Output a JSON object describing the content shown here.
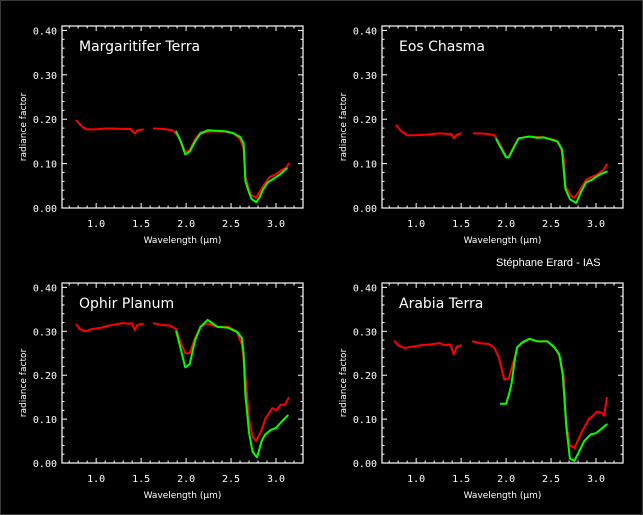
{
  "credit": "Stéphane Erard - IAS",
  "colors": {
    "background": "#000000",
    "axis": "#ffffff",
    "series_red": "#ff0000",
    "series_green": "#00ff00"
  },
  "chart_data": [
    {
      "type": "line",
      "title": "Margaritifer Terra",
      "xlabel": "Wavelength (µm)",
      "ylabel": "radiance factor",
      "xlim": [
        0.62,
        3.3
      ],
      "ylim": [
        0.0,
        0.41
      ],
      "xticks": [
        "1.0",
        "1.5",
        "2.0",
        "2.5",
        "3.0"
      ],
      "xtick_values": [
        1.0,
        1.5,
        2.0,
        2.5,
        3.0
      ],
      "yticks": [
        "0.00",
        "0.10",
        "0.20",
        "0.30",
        "0.40"
      ],
      "ytick_values": [
        0.0,
        0.1,
        0.2,
        0.3,
        0.4
      ],
      "series": [
        {
          "name": "red-1",
          "color": "red",
          "points": [
            [
              0.78,
              0.197
            ],
            [
              0.85,
              0.182
            ],
            [
              0.9,
              0.177
            ],
            [
              1.0,
              0.177
            ],
            [
              1.1,
              0.179
            ],
            [
              1.2,
              0.179
            ],
            [
              1.3,
              0.178
            ],
            [
              1.38,
              0.178
            ],
            [
              1.43,
              0.168
            ],
            [
              1.46,
              0.175
            ],
            [
              1.52,
              0.177
            ]
          ]
        },
        {
          "name": "red-2",
          "color": "red",
          "points": [
            [
              1.64,
              0.179
            ],
            [
              1.75,
              0.178
            ],
            [
              1.85,
              0.175
            ],
            [
              1.92,
              0.16
            ],
            [
              1.99,
              0.127
            ],
            [
              2.04,
              0.13
            ],
            [
              2.1,
              0.155
            ],
            [
              2.16,
              0.17
            ],
            [
              2.3,
              0.173
            ],
            [
              2.43,
              0.172
            ],
            [
              2.53,
              0.168
            ],
            [
              2.6,
              0.155
            ],
            [
              2.64,
              0.135
            ],
            [
              2.66,
              0.07
            ],
            [
              2.72,
              0.03
            ],
            [
              2.78,
              0.023
            ],
            [
              2.86,
              0.05
            ],
            [
              2.93,
              0.07
            ],
            [
              2.99,
              0.075
            ],
            [
              3.06,
              0.085
            ],
            [
              3.12,
              0.092
            ],
            [
              3.14,
              0.1
            ]
          ]
        },
        {
          "name": "green",
          "color": "green",
          "points": [
            [
              1.89,
              0.172
            ],
            [
              1.94,
              0.15
            ],
            [
              1.99,
              0.121
            ],
            [
              2.04,
              0.127
            ],
            [
              2.1,
              0.15
            ],
            [
              2.16,
              0.168
            ],
            [
              2.24,
              0.175
            ],
            [
              2.33,
              0.174
            ],
            [
              2.43,
              0.173
            ],
            [
              2.52,
              0.169
            ],
            [
              2.6,
              0.16
            ],
            [
              2.64,
              0.146
            ],
            [
              2.66,
              0.061
            ],
            [
              2.7,
              0.035
            ],
            [
              2.73,
              0.02
            ],
            [
              2.78,
              0.013
            ],
            [
              2.82,
              0.025
            ],
            [
              2.86,
              0.043
            ],
            [
              2.91,
              0.058
            ],
            [
              2.96,
              0.064
            ],
            [
              3.04,
              0.075
            ],
            [
              3.12,
              0.089
            ]
          ]
        }
      ]
    },
    {
      "type": "line",
      "title": "Eos Chasma",
      "xlabel": "Wavelength (µm)",
      "ylabel": "radiance factor",
      "xlim": [
        0.62,
        3.3
      ],
      "ylim": [
        0.0,
        0.41
      ],
      "xticks": [
        "1.0",
        "1.5",
        "2.0",
        "2.5",
        "3.0"
      ],
      "xtick_values": [
        1.0,
        1.5,
        2.0,
        2.5,
        3.0
      ],
      "yticks": [
        "0.00",
        "0.10",
        "0.20",
        "0.30",
        "0.40"
      ],
      "ytick_values": [
        0.0,
        0.1,
        0.2,
        0.3,
        0.4
      ],
      "series": [
        {
          "name": "red-1",
          "color": "red",
          "points": [
            [
              0.78,
              0.186
            ],
            [
              0.84,
              0.172
            ],
            [
              0.9,
              0.164
            ],
            [
              1.0,
              0.164
            ],
            [
              1.1,
              0.165
            ],
            [
              1.2,
              0.167
            ],
            [
              1.26,
              0.168
            ],
            [
              1.35,
              0.167
            ],
            [
              1.39,
              0.167
            ],
            [
              1.42,
              0.157
            ],
            [
              1.45,
              0.165
            ],
            [
              1.5,
              0.168
            ]
          ]
        },
        {
          "name": "red-2",
          "color": "red",
          "points": [
            [
              1.64,
              0.168
            ],
            [
              1.73,
              0.168
            ],
            [
              1.82,
              0.166
            ],
            [
              1.87,
              0.164
            ],
            [
              1.93,
              0.145
            ],
            [
              2.0,
              0.116
            ],
            [
              2.03,
              0.116
            ],
            [
              2.09,
              0.14
            ],
            [
              2.14,
              0.157
            ],
            [
              2.26,
              0.161
            ],
            [
              2.42,
              0.159
            ],
            [
              2.55,
              0.153
            ],
            [
              2.6,
              0.14
            ],
            [
              2.64,
              0.115
            ],
            [
              2.66,
              0.05
            ],
            [
              2.72,
              0.028
            ],
            [
              2.76,
              0.023
            ],
            [
              2.82,
              0.04
            ],
            [
              2.89,
              0.063
            ],
            [
              2.95,
              0.07
            ],
            [
              3.0,
              0.074
            ],
            [
              3.08,
              0.085
            ],
            [
              3.12,
              0.098
            ]
          ]
        },
        {
          "name": "green",
          "color": "green",
          "points": [
            [
              1.89,
              0.155
            ],
            [
              1.94,
              0.136
            ],
            [
              2.0,
              0.114
            ],
            [
              2.03,
              0.114
            ],
            [
              2.09,
              0.138
            ],
            [
              2.14,
              0.157
            ],
            [
              2.26,
              0.161
            ],
            [
              2.35,
              0.158
            ],
            [
              2.42,
              0.159
            ],
            [
              2.57,
              0.15
            ],
            [
              2.62,
              0.132
            ],
            [
              2.66,
              0.043
            ],
            [
              2.71,
              0.02
            ],
            [
              2.78,
              0.011
            ],
            [
              2.83,
              0.035
            ],
            [
              2.89,
              0.058
            ],
            [
              2.95,
              0.063
            ],
            [
              3.0,
              0.07
            ],
            [
              3.06,
              0.077
            ],
            [
              3.12,
              0.082
            ]
          ]
        }
      ]
    },
    {
      "type": "line",
      "title": "Ophir Planum",
      "xlabel": "Wavelength (µm)",
      "ylabel": "radiance factor",
      "xlim": [
        0.62,
        3.3
      ],
      "ylim": [
        0.0,
        0.41
      ],
      "xticks": [
        "1.0",
        "1.5",
        "2.0",
        "2.5",
        "3.0"
      ],
      "xtick_values": [
        1.0,
        1.5,
        2.0,
        2.5,
        3.0
      ],
      "yticks": [
        "0.00",
        "0.10",
        "0.20",
        "0.30",
        "0.40"
      ],
      "ytick_values": [
        0.0,
        0.1,
        0.2,
        0.3,
        0.4
      ],
      "series": [
        {
          "name": "red-1",
          "color": "red",
          "points": [
            [
              0.78,
              0.315
            ],
            [
              0.82,
              0.305
            ],
            [
              0.88,
              0.3
            ],
            [
              0.95,
              0.305
            ],
            [
              1.05,
              0.308
            ],
            [
              1.12,
              0.312
            ],
            [
              1.2,
              0.315
            ],
            [
              1.3,
              0.319
            ],
            [
              1.36,
              0.317
            ],
            [
              1.4,
              0.318
            ],
            [
              1.43,
              0.303
            ],
            [
              1.46,
              0.315
            ],
            [
              1.52,
              0.317
            ]
          ]
        },
        {
          "name": "red-2",
          "color": "red",
          "points": [
            [
              1.64,
              0.318
            ],
            [
              1.72,
              0.315
            ],
            [
              1.82,
              0.313
            ],
            [
              1.89,
              0.305
            ],
            [
              1.94,
              0.275
            ],
            [
              1.99,
              0.25
            ],
            [
              2.04,
              0.25
            ],
            [
              2.1,
              0.285
            ],
            [
              2.16,
              0.31
            ],
            [
              2.24,
              0.318
            ],
            [
              2.35,
              0.31
            ],
            [
              2.47,
              0.31
            ],
            [
              2.56,
              0.3
            ],
            [
              2.62,
              0.27
            ],
            [
              2.66,
              0.2
            ],
            [
              2.7,
              0.1
            ],
            [
              2.74,
              0.06
            ],
            [
              2.78,
              0.05
            ],
            [
              2.84,
              0.075
            ],
            [
              2.88,
              0.1
            ],
            [
              2.96,
              0.125
            ],
            [
              3.0,
              0.12
            ],
            [
              3.05,
              0.132
            ],
            [
              3.1,
              0.133
            ],
            [
              3.14,
              0.148
            ]
          ]
        },
        {
          "name": "green",
          "color": "green",
          "points": [
            [
              1.89,
              0.3
            ],
            [
              1.94,
              0.26
            ],
            [
              1.99,
              0.218
            ],
            [
              2.04,
              0.225
            ],
            [
              2.1,
              0.28
            ],
            [
              2.16,
              0.31
            ],
            [
              2.24,
              0.326
            ],
            [
              2.35,
              0.31
            ],
            [
              2.47,
              0.308
            ],
            [
              2.57,
              0.298
            ],
            [
              2.62,
              0.285
            ],
            [
              2.64,
              0.25
            ],
            [
              2.66,
              0.155
            ],
            [
              2.7,
              0.07
            ],
            [
              2.74,
              0.025
            ],
            [
              2.79,
              0.013
            ],
            [
              2.84,
              0.05
            ],
            [
              2.88,
              0.065
            ],
            [
              2.94,
              0.075
            ],
            [
              3.0,
              0.08
            ],
            [
              3.07,
              0.096
            ],
            [
              3.13,
              0.108
            ]
          ]
        }
      ]
    },
    {
      "type": "line",
      "title": "Arabia Terra",
      "xlabel": "Wavelength (µm)",
      "ylabel": "radiance factor",
      "xlim": [
        0.62,
        3.3
      ],
      "ylim": [
        0.0,
        0.41
      ],
      "xticks": [
        "1.0",
        "1.5",
        "2.0",
        "2.5",
        "3.0"
      ],
      "xtick_values": [
        1.0,
        1.5,
        2.0,
        2.5,
        3.0
      ],
      "yticks": [
        "0.00",
        "0.10",
        "0.20",
        "0.30",
        "0.40"
      ],
      "ytick_values": [
        0.0,
        0.1,
        0.2,
        0.3,
        0.4
      ],
      "series": [
        {
          "name": "red-1",
          "color": "red",
          "points": [
            [
              0.76,
              0.278
            ],
            [
              0.8,
              0.268
            ],
            [
              0.87,
              0.262
            ],
            [
              0.95,
              0.265
            ],
            [
              1.05,
              0.268
            ],
            [
              1.15,
              0.27
            ],
            [
              1.26,
              0.273
            ],
            [
              1.32,
              0.268
            ],
            [
              1.38,
              0.27
            ],
            [
              1.42,
              0.247
            ],
            [
              1.45,
              0.265
            ],
            [
              1.5,
              0.268
            ]
          ]
        },
        {
          "name": "red-2",
          "color": "red",
          "points": [
            [
              1.63,
              0.277
            ],
            [
              1.7,
              0.273
            ],
            [
              1.81,
              0.271
            ],
            [
              1.87,
              0.262
            ],
            [
              1.92,
              0.24
            ],
            [
              1.98,
              0.19
            ],
            [
              2.03,
              0.193
            ],
            [
              2.08,
              0.23
            ],
            [
              2.13,
              0.265
            ],
            [
              2.2,
              0.275
            ],
            [
              2.26,
              0.283
            ],
            [
              2.35,
              0.277
            ],
            [
              2.46,
              0.277
            ],
            [
              2.55,
              0.26
            ],
            [
              2.6,
              0.24
            ],
            [
              2.64,
              0.2
            ],
            [
              2.67,
              0.09
            ],
            [
              2.71,
              0.04
            ],
            [
              2.76,
              0.034
            ],
            [
              2.84,
              0.07
            ],
            [
              2.92,
              0.1
            ],
            [
              2.97,
              0.108
            ],
            [
              3.01,
              0.117
            ],
            [
              3.06,
              0.115
            ],
            [
              3.09,
              0.108
            ],
            [
              3.12,
              0.148
            ]
          ]
        },
        {
          "name": "green",
          "color": "green",
          "points": [
            [
              1.94,
              0.135
            ],
            [
              2.0,
              0.135
            ],
            [
              2.03,
              0.155
            ],
            [
              2.06,
              0.18
            ],
            [
              2.09,
              0.225
            ],
            [
              2.12,
              0.263
            ],
            [
              2.18,
              0.275
            ],
            [
              2.26,
              0.283
            ],
            [
              2.35,
              0.277
            ],
            [
              2.46,
              0.277
            ],
            [
              2.53,
              0.265
            ],
            [
              2.59,
              0.248
            ],
            [
              2.63,
              0.2
            ],
            [
              2.67,
              0.083
            ],
            [
              2.71,
              0.01
            ],
            [
              2.76,
              0.005
            ],
            [
              2.81,
              0.025
            ],
            [
              2.87,
              0.05
            ],
            [
              2.94,
              0.065
            ],
            [
              3.0,
              0.068
            ],
            [
              3.06,
              0.078
            ],
            [
              3.12,
              0.088
            ]
          ]
        }
      ]
    }
  ]
}
